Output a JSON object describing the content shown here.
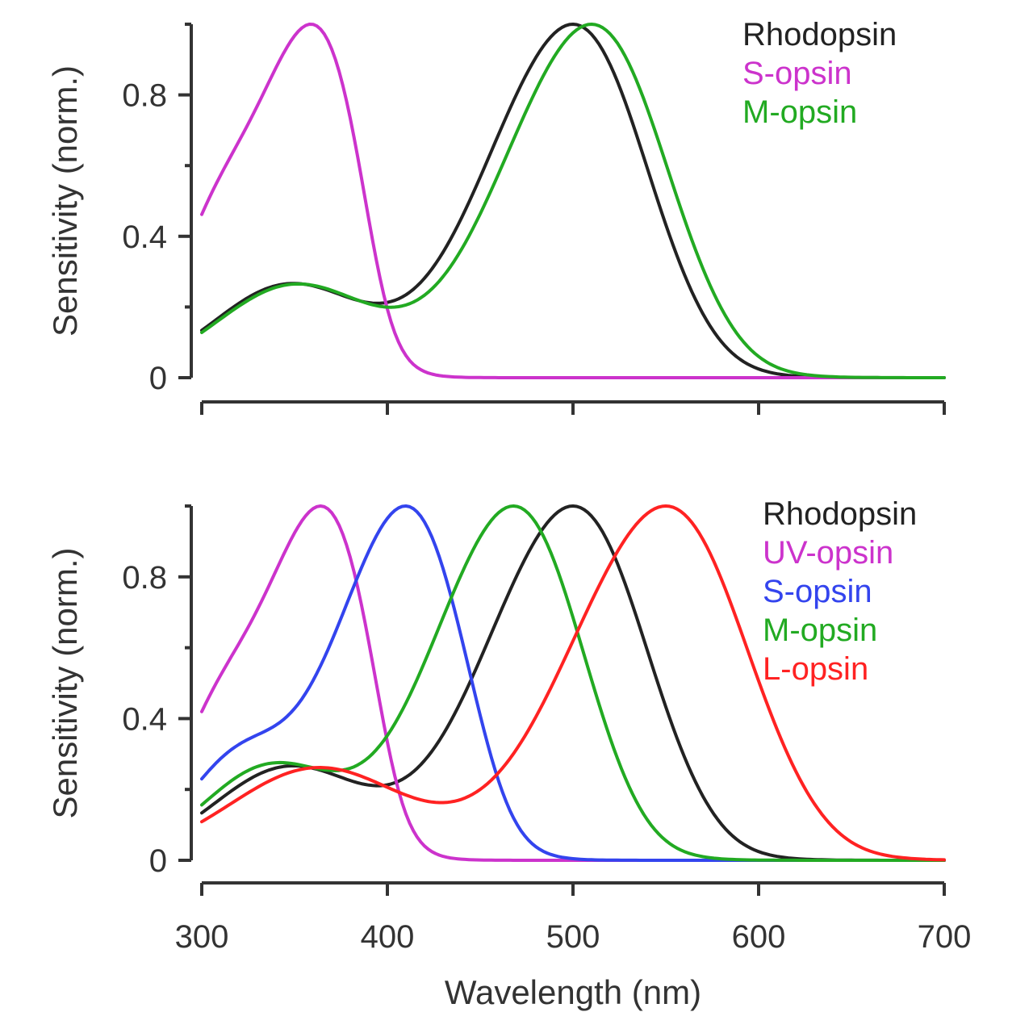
{
  "chart_data": [
    {
      "type": "line",
      "title": "",
      "xlabel": "",
      "ylabel": "Sensitivity (norm.)",
      "xlim": [
        300,
        700
      ],
      "ylim": [
        0,
        1
      ],
      "yticks": [
        "0",
        "0.4",
        "0.8"
      ],
      "ytick_values": [
        0,
        0.4,
        0.8
      ],
      "xticks_values": [
        300,
        400,
        500,
        600,
        700
      ],
      "legend_position": "top-right",
      "series": [
        {
          "name": "Rhodopsin",
          "color": "#222222",
          "peak_nm": 500
        },
        {
          "name": "S-opsin",
          "color": "#cc33cc",
          "peak_nm": 360
        },
        {
          "name": "M-opsin",
          "color": "#22aa22",
          "peak_nm": 510
        }
      ]
    },
    {
      "type": "line",
      "title": "",
      "xlabel": "Wavelength (nm)",
      "ylabel": "Sensitivity (norm.)",
      "xlim": [
        300,
        700
      ],
      "ylim": [
        0,
        1
      ],
      "yticks": [
        "0",
        "0.4",
        "0.8"
      ],
      "ytick_values": [
        0,
        0.4,
        0.8
      ],
      "xticks": [
        "300",
        "400",
        "500",
        "600",
        "700"
      ],
      "xticks_values": [
        300,
        400,
        500,
        600,
        700
      ],
      "legend_position": "top-right",
      "series": [
        {
          "name": "Rhodopsin",
          "color": "#222222",
          "peak_nm": 500
        },
        {
          "name": "UV-opsin",
          "color": "#cc33cc",
          "peak_nm": 365
        },
        {
          "name": "S-opsin",
          "color": "#3344ee",
          "peak_nm": 410
        },
        {
          "name": "M-opsin",
          "color": "#22aa22",
          "peak_nm": 468
        },
        {
          "name": "L-opsin",
          "color": "#ff2222",
          "peak_nm": 550
        }
      ]
    }
  ]
}
